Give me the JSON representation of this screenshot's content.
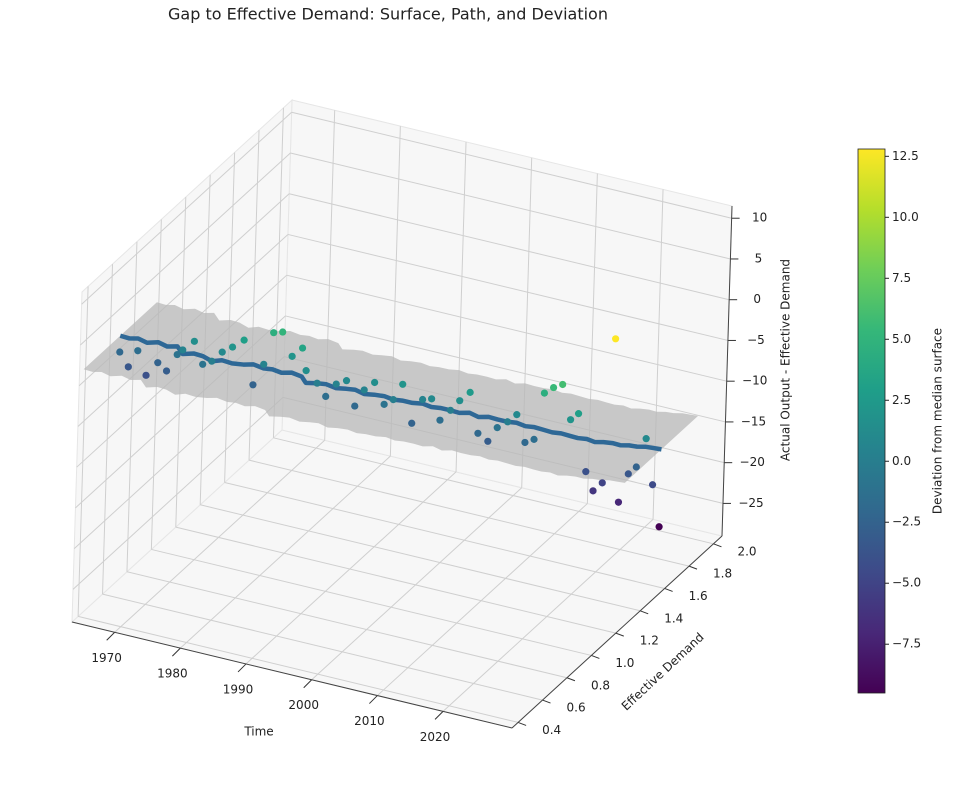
{
  "chart_data": {
    "type": "scatter3d",
    "title": "Gap to Effective Demand: Surface, Path, and Deviation",
    "xlabel": "Time",
    "ylabel": "Effective Demand",
    "zlabel": "Actual Output - Effective Demand",
    "xlim": [
      1963.5,
      2030.5
    ],
    "ylim": [
      0.35,
      2.07
    ],
    "zlim": [
      -29,
      11.5
    ],
    "xticks": [
      1970,
      1980,
      1990,
      2000,
      2010,
      2020
    ],
    "yticks": [
      0.4,
      0.6,
      0.8,
      {
        "value": 1.0,
        "label": "1.0"
      },
      1.2,
      1.4,
      1.6,
      1.8,
      {
        "value": 2.0,
        "label": "2.0"
      }
    ],
    "zticks": [
      {
        "value": -25,
        "label": "−25"
      },
      {
        "value": -20,
        "label": "−20"
      },
      {
        "value": -15,
        "label": "−15"
      },
      {
        "value": -10,
        "label": "−10"
      },
      {
        "value": -5,
        "label": "−5"
      },
      0,
      5,
      10
    ],
    "grid": true,
    "surface_color": "#b8b8b8",
    "line_color": "#2e6896",
    "path": {
      "x": [
        1965,
        1966,
        1967,
        1968,
        1969,
        1970,
        1971,
        1972,
        1973,
        1974,
        1975,
        1976,
        1977,
        1978,
        1979,
        1980,
        1981,
        1982,
        1983,
        1984,
        1985,
        1986,
        1987,
        1988,
        1989,
        1990,
        1991,
        1992,
        1993,
        1994,
        1995,
        1996,
        1997,
        1998,
        1999,
        2000,
        2001,
        2002,
        2003,
        2004,
        2005,
        2006,
        2007,
        2008,
        2009,
        2010,
        2011,
        2012,
        2013,
        2014,
        2015,
        2016,
        2017,
        2018,
        2019,
        2020,
        2021,
        2022,
        2023,
        2024
      ],
      "y": [
        0.6,
        0.62,
        0.64,
        0.66,
        0.7,
        0.72,
        0.75,
        0.74,
        0.78,
        0.8,
        0.82,
        0.85,
        0.88,
        0.92,
        0.95,
        0.98,
        1.0,
        1.02,
        1.05,
        1.08,
        1.06,
        1.1,
        1.12,
        1.15,
        1.18,
        1.2,
        1.22,
        1.25,
        1.28,
        1.3,
        1.32,
        1.35,
        1.38,
        1.4,
        1.42,
        1.45,
        1.47,
        1.5,
        1.52,
        1.55,
        1.57,
        1.6,
        1.62,
        1.64,
        1.66,
        1.68,
        1.7,
        1.72,
        1.74,
        1.75,
        1.77,
        1.78,
        1.8,
        1.82,
        1.83,
        1.85,
        1.86,
        1.88,
        1.89,
        1.9
      ],
      "z": [
        3.0,
        2.6,
        2.5,
        1.9,
        1.6,
        1.0,
        0.8,
        0.2,
        -0.1,
        -0.5,
        -1.2,
        -1.3,
        -1.9,
        -2.4,
        -2.6,
        -3.3,
        -3.5,
        -4.0,
        -4.2,
        -4.9,
        -5.2,
        -5.6,
        -5.8,
        -6.5,
        -6.8,
        -7.0,
        -7.6,
        -7.9,
        -8.3,
        -8.8,
        -9.0,
        -9.5,
        -9.8,
        -10.3,
        -10.5,
        -11.0,
        -11.4,
        -11.6,
        -12.2,
        -12.4,
        -12.8,
        -13.3,
        -13.5,
        -14.0,
        -14.2,
        -14.6,
        -15.0,
        -15.2,
        -15.6,
        -15.8,
        -16.0,
        -16.3,
        -16.4,
        -16.6,
        -16.8,
        -16.9,
        -17.0,
        -17.1,
        -17.2,
        -17.3
      ]
    },
    "points": {
      "z": [
        1.0,
        -0.9,
        1.0,
        -2.1,
        -0.9,
        -2.0,
        -0.2,
        0.7,
        1.4,
        -1.5,
        -1.2,
        -0.3,
        0.1,
        0.6,
        -5.1,
        -2.8,
        1.0,
        1.0,
        -2.2,
        -1.4,
        -3.7,
        -5.6,
        -7.3,
        -6.0,
        -5.8,
        -9.0,
        -7.1,
        -6.4,
        -9.3,
        -8.8,
        -7.0,
        -12.0,
        -9.3,
        -9.3,
        -12.0,
        -11.0,
        -9.9,
        -9.1,
        -14.2,
        -15.4,
        -13.8,
        -13.3,
        -12.5,
        -16.0,
        -15.7,
        -10.1,
        -9.5,
        -9.2,
        -13.6,
        -12.8,
        -20.0,
        -22.3,
        -21.4,
        -3.8,
        -23.8,
        -20.4,
        -19.5,
        -16.1,
        -21.7,
        -26.8
      ],
      "deviation": [
        -2.0,
        -3.5,
        -1.5,
        -4.0,
        -2.5,
        -3.0,
        -1.0,
        0.5,
        1.5,
        -1.0,
        0.0,
        1.0,
        2.0,
        3.0,
        -2.5,
        0.5,
        4.5,
        5.0,
        2.0,
        3.5,
        1.5,
        0.0,
        -1.5,
        0.5,
        1.0,
        -2.0,
        0.5,
        1.5,
        -1.0,
        0.0,
        2.0,
        -2.5,
        0.5,
        1.0,
        -1.5,
        0.0,
        1.5,
        2.5,
        -2.0,
        -3.0,
        -1.0,
        0.0,
        1.0,
        -2.0,
        -1.5,
        4.5,
        5.5,
        6.0,
        2.0,
        3.0,
        -4.0,
        -6.0,
        -5.0,
        12.8,
        -7.0,
        -3.5,
        -2.5,
        1.0,
        -4.5,
        -9.5
      ]
    },
    "colorbar": {
      "label": "Deviation from median surface",
      "clim": [
        -9.5,
        12.8
      ],
      "colormap": [
        "#440154",
        "#482878",
        "#3e4a89",
        "#31688e",
        "#26828e",
        "#1f9e89",
        "#35b779",
        "#6ece58",
        "#b5de2b",
        "#fde725"
      ],
      "ticks": [
        {
          "value": -7.5,
          "label": "−7.5"
        },
        {
          "value": -5.0,
          "label": "−5.0"
        },
        {
          "value": -2.5,
          "label": "−2.5"
        },
        {
          "value": 0.0,
          "label": "0.0"
        },
        {
          "value": 2.5,
          "label": "2.5"
        },
        {
          "value": 5.0,
          "label": "5.0"
        },
        {
          "value": 7.5,
          "label": "7.5"
        },
        {
          "value": 10.0,
          "label": "10.0"
        },
        {
          "value": 12.5,
          "label": "12.5"
        }
      ]
    }
  }
}
